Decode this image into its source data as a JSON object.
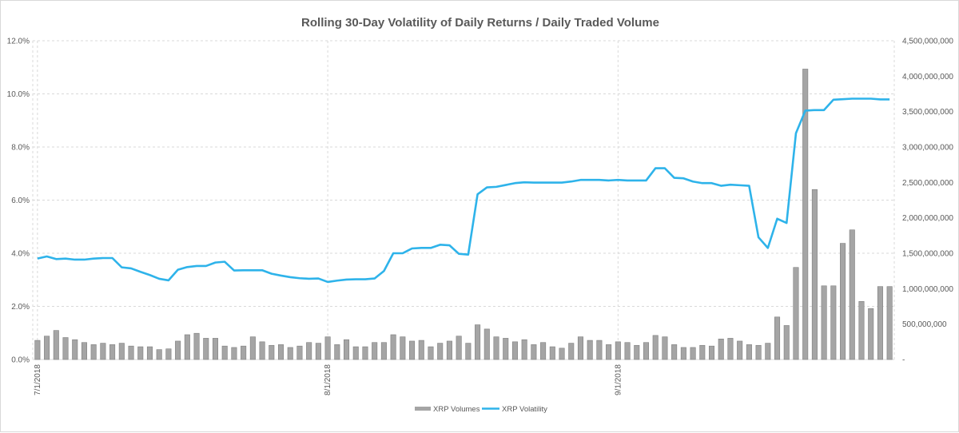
{
  "chart_data": {
    "type": "bar+line",
    "title": "Rolling 30-Day Volatility of Daily Returns / Daily Traded  Volume",
    "x_labels": [
      "7/1/2018",
      "8/1/2018",
      "9/1/2018"
    ],
    "y_left": {
      "ticks": [
        "0.0%",
        "2.0%",
        "4.0%",
        "6.0%",
        "8.0%",
        "10.0%",
        "12.0%"
      ],
      "range": [
        0,
        12
      ]
    },
    "y_right": {
      "ticks": [
        "-",
        "500,000,000",
        "1,000,000,000",
        "1,500,000,000",
        "2,000,000,000",
        "2,500,000,000",
        "3,000,000,000",
        "3,500,000,000",
        "4,000,000,000",
        "4,500,000,000"
      ],
      "range": [
        0,
        4500000000
      ]
    },
    "grid": true,
    "legend_position": "bottom",
    "colors": {
      "volume": "#a5a5a5",
      "volatility": "#2eb3ea",
      "grid": "#d9d9d9",
      "text": "#595959"
    },
    "series": [
      {
        "name": "XRP Volumes",
        "axis": "right",
        "kind": "bar",
        "values": [
          270000000,
          330000000,
          410000000,
          310000000,
          280000000,
          240000000,
          210000000,
          230000000,
          210000000,
          230000000,
          190000000,
          180000000,
          180000000,
          140000000,
          150000000,
          260000000,
          350000000,
          370000000,
          300000000,
          300000000,
          190000000,
          170000000,
          190000000,
          320000000,
          250000000,
          200000000,
          210000000,
          170000000,
          190000000,
          240000000,
          230000000,
          320000000,
          210000000,
          280000000,
          180000000,
          180000000,
          240000000,
          240000000,
          350000000,
          320000000,
          260000000,
          270000000,
          180000000,
          230000000,
          260000000,
          330000000,
          230000000,
          490000000,
          430000000,
          320000000,
          300000000,
          250000000,
          280000000,
          210000000,
          240000000,
          180000000,
          160000000,
          230000000,
          320000000,
          270000000,
          270000000,
          210000000,
          250000000,
          240000000,
          200000000,
          240000000,
          340000000,
          320000000,
          210000000,
          170000000,
          170000000,
          200000000,
          190000000,
          290000000,
          300000000,
          260000000,
          210000000,
          200000000,
          230000000,
          600000000,
          480000000,
          1300000000,
          4100000000,
          2400000000,
          1040000000,
          1040000000,
          1640000000,
          1830000000,
          820000000,
          720000000,
          1030000000,
          1030000000
        ]
      },
      {
        "name": "XRP Volatility",
        "axis": "left",
        "kind": "line",
        "values": [
          3.8,
          3.88,
          3.78,
          3.8,
          3.76,
          3.76,
          3.8,
          3.82,
          3.82,
          3.47,
          3.43,
          3.3,
          3.18,
          3.04,
          2.98,
          3.38,
          3.48,
          3.52,
          3.52,
          3.65,
          3.68,
          3.35,
          3.36,
          3.36,
          3.36,
          3.23,
          3.16,
          3.1,
          3.06,
          3.04,
          3.05,
          2.92,
          2.97,
          3.01,
          3.02,
          3.02,
          3.05,
          3.33,
          4.0,
          4.0,
          4.18,
          4.2,
          4.2,
          4.32,
          4.3,
          3.98,
          3.95,
          6.22,
          6.48,
          6.5,
          6.57,
          6.64,
          6.67,
          6.66,
          6.66,
          6.66,
          6.66,
          6.7,
          6.76,
          6.76,
          6.76,
          6.74,
          6.76,
          6.74,
          6.74,
          6.74,
          7.2,
          7.2,
          6.84,
          6.82,
          6.7,
          6.64,
          6.64,
          6.54,
          6.58,
          6.56,
          6.54,
          4.6,
          4.2,
          5.3,
          5.14,
          8.52,
          9.37,
          9.39,
          9.39,
          9.78,
          9.8,
          9.82,
          9.82,
          9.82,
          9.79,
          9.79
        ]
      }
    ]
  }
}
